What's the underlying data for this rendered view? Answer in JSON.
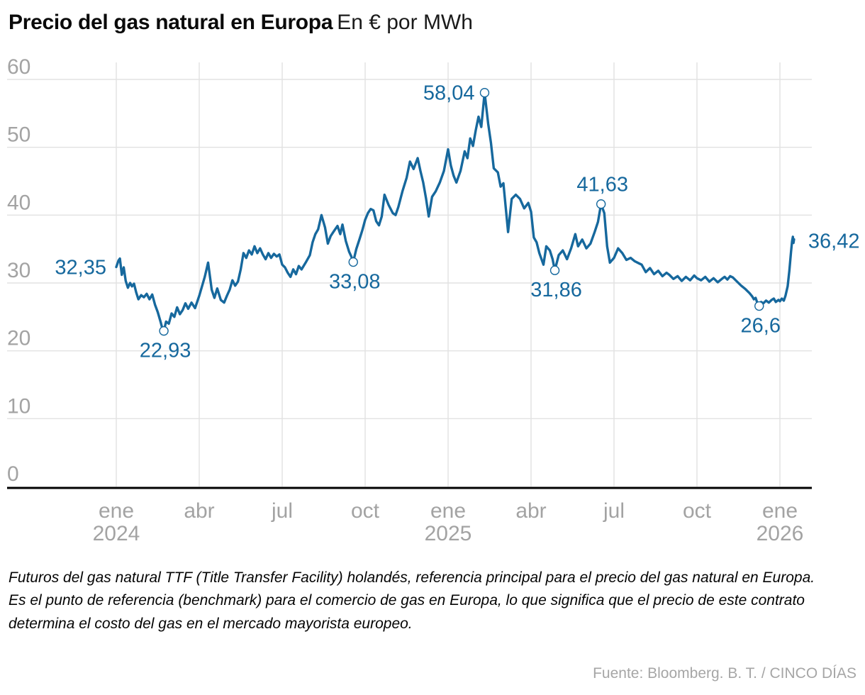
{
  "title": {
    "main": "Precio del gas natural en Europa",
    "subtitle": "En € por MWh"
  },
  "colors": {
    "line": "#16689d",
    "annotation_text": "#16689d",
    "marker_fill": "#ffffff",
    "gridline": "#e2e2e2",
    "axis_line": "#000000",
    "axis_tick_label": "#a3a3a3",
    "title_text": "#0a0a0a",
    "footnote_text": "#050505",
    "source_text": "#a6a6a6"
  },
  "chart_data": {
    "type": "line",
    "title": "Precio del gas natural en Europa",
    "subtitle": "En € por MWh",
    "ylabel": "",
    "unit": "€ por MWh",
    "ylim": [
      0,
      60
    ],
    "y_ticks": [
      0,
      10,
      20,
      30,
      40,
      50,
      60
    ],
    "x_unit": "months since 2024-01-01",
    "x_ticks": [
      {
        "m": 0,
        "label": "ene",
        "year": "2024"
      },
      {
        "m": 3,
        "label": "abr",
        "year": ""
      },
      {
        "m": 6,
        "label": "jul",
        "year": ""
      },
      {
        "m": 9,
        "label": "oct",
        "year": ""
      },
      {
        "m": 12,
        "label": "ene",
        "year": "2025"
      },
      {
        "m": 15,
        "label": "abr",
        "year": ""
      },
      {
        "m": 18,
        "label": "jul",
        "year": ""
      },
      {
        "m": 21,
        "label": "oct",
        "year": ""
      },
      {
        "m": 24,
        "label": "ene",
        "year": "2026"
      }
    ],
    "gridlines": true,
    "legend_position": "none",
    "series": [
      {
        "name": "Futuros gas natural TTF (€/MWh)",
        "points": [
          [
            0,
            32.35
          ],
          [
            0.08,
            33.3
          ],
          [
            0.13,
            33.6
          ],
          [
            0.2,
            31.2
          ],
          [
            0.27,
            32.3
          ],
          [
            0.34,
            30.3
          ],
          [
            0.42,
            29.3
          ],
          [
            0.5,
            30.0
          ],
          [
            0.57,
            29.5
          ],
          [
            0.64,
            29.9
          ],
          [
            0.72,
            28.6
          ],
          [
            0.8,
            27.6
          ],
          [
            0.9,
            28.2
          ],
          [
            1.0,
            27.9
          ],
          [
            1.1,
            28.4
          ],
          [
            1.2,
            27.6
          ],
          [
            1.3,
            28.3
          ],
          [
            1.4,
            26.8
          ],
          [
            1.5,
            25.7
          ],
          [
            1.6,
            24.3
          ],
          [
            1.66,
            23.4
          ],
          [
            1.72,
            22.93
          ],
          [
            1.8,
            24.3
          ],
          [
            1.9,
            24.0
          ],
          [
            2.0,
            25.5
          ],
          [
            2.1,
            25.0
          ],
          [
            2.2,
            26.4
          ],
          [
            2.3,
            25.4
          ],
          [
            2.4,
            26.0
          ],
          [
            2.5,
            27.0
          ],
          [
            2.6,
            26.2
          ],
          [
            2.72,
            27.1
          ],
          [
            2.85,
            26.3
          ],
          [
            3.0,
            28.1
          ],
          [
            3.1,
            29.5
          ],
          [
            3.2,
            30.9
          ],
          [
            3.32,
            33.0
          ],
          [
            3.45,
            29.0
          ],
          [
            3.55,
            27.8
          ],
          [
            3.65,
            29.2
          ],
          [
            3.78,
            27.5
          ],
          [
            3.9,
            27.1
          ],
          [
            4.0,
            28.1
          ],
          [
            4.1,
            29.0
          ],
          [
            4.2,
            30.4
          ],
          [
            4.3,
            29.6
          ],
          [
            4.4,
            30.2
          ],
          [
            4.5,
            32.0
          ],
          [
            4.6,
            34.4
          ],
          [
            4.7,
            33.7
          ],
          [
            4.8,
            34.8
          ],
          [
            4.9,
            34.2
          ],
          [
            5.0,
            35.4
          ],
          [
            5.1,
            34.4
          ],
          [
            5.2,
            35.1
          ],
          [
            5.3,
            34.2
          ],
          [
            5.4,
            33.5
          ],
          [
            5.5,
            34.4
          ],
          [
            5.6,
            33.7
          ],
          [
            5.7,
            34.3
          ],
          [
            5.8,
            33.9
          ],
          [
            5.9,
            34.2
          ],
          [
            6.0,
            32.7
          ],
          [
            6.1,
            32.3
          ],
          [
            6.2,
            31.5
          ],
          [
            6.3,
            30.9
          ],
          [
            6.4,
            32.0
          ],
          [
            6.5,
            31.3
          ],
          [
            6.6,
            32.5
          ],
          [
            6.7,
            32.0
          ],
          [
            6.85,
            33.0
          ],
          [
            7.0,
            34.1
          ],
          [
            7.1,
            36.0
          ],
          [
            7.2,
            37.2
          ],
          [
            7.3,
            37.9
          ],
          [
            7.42,
            40.0
          ],
          [
            7.55,
            38.2
          ],
          [
            7.65,
            35.8
          ],
          [
            7.75,
            36.9
          ],
          [
            7.85,
            37.5
          ],
          [
            8.0,
            38.4
          ],
          [
            8.1,
            37.2
          ],
          [
            8.18,
            38.6
          ],
          [
            8.3,
            36.2
          ],
          [
            8.42,
            34.6
          ],
          [
            8.5,
            33.9
          ],
          [
            8.57,
            33.08
          ],
          [
            8.68,
            35.0
          ],
          [
            8.8,
            36.5
          ],
          [
            8.9,
            37.8
          ],
          [
            9.0,
            39.3
          ],
          [
            9.1,
            40.3
          ],
          [
            9.2,
            40.9
          ],
          [
            9.3,
            40.7
          ],
          [
            9.4,
            39.1
          ],
          [
            9.5,
            38.5
          ],
          [
            9.6,
            39.8
          ],
          [
            9.7,
            43.0
          ],
          [
            9.85,
            41.5
          ],
          [
            10.0,
            40.3
          ],
          [
            10.1,
            40.0
          ],
          [
            10.2,
            41.2
          ],
          [
            10.35,
            43.5
          ],
          [
            10.5,
            45.5
          ],
          [
            10.62,
            47.9
          ],
          [
            10.75,
            46.8
          ],
          [
            10.9,
            48.4
          ],
          [
            11.0,
            46.5
          ],
          [
            11.1,
            44.8
          ],
          [
            11.2,
            42.5
          ],
          [
            11.3,
            39.8
          ],
          [
            11.42,
            42.7
          ],
          [
            11.55,
            43.5
          ],
          [
            11.7,
            44.8
          ],
          [
            11.85,
            46.5
          ],
          [
            12.0,
            49.7
          ],
          [
            12.1,
            47.3
          ],
          [
            12.2,
            45.8
          ],
          [
            12.3,
            44.8
          ],
          [
            12.45,
            46.5
          ],
          [
            12.6,
            49.4
          ],
          [
            12.7,
            48.4
          ],
          [
            12.8,
            51.3
          ],
          [
            12.9,
            50.2
          ],
          [
            13.0,
            52.5
          ],
          [
            13.1,
            54.5
          ],
          [
            13.2,
            53.0
          ],
          [
            13.32,
            58.04
          ],
          [
            13.45,
            53.5
          ],
          [
            13.55,
            50.6
          ],
          [
            13.65,
            46.9
          ],
          [
            13.8,
            46.3
          ],
          [
            13.9,
            44.2
          ],
          [
            14.0,
            44.7
          ],
          [
            14.17,
            37.5
          ],
          [
            14.3,
            42.4
          ],
          [
            14.45,
            43.0
          ],
          [
            14.6,
            42.4
          ],
          [
            14.75,
            41.0
          ],
          [
            14.9,
            41.8
          ],
          [
            15.0,
            40.5
          ],
          [
            15.1,
            36.7
          ],
          [
            15.2,
            36.0
          ],
          [
            15.3,
            34.4
          ],
          [
            15.45,
            32.7
          ],
          [
            15.55,
            35.4
          ],
          [
            15.68,
            34.8
          ],
          [
            15.78,
            33.5
          ],
          [
            15.86,
            31.86
          ],
          [
            16.0,
            34.1
          ],
          [
            16.15,
            34.8
          ],
          [
            16.3,
            33.5
          ],
          [
            16.45,
            35.1
          ],
          [
            16.6,
            37.2
          ],
          [
            16.7,
            35.4
          ],
          [
            16.85,
            36.4
          ],
          [
            17.0,
            35.1
          ],
          [
            17.15,
            35.8
          ],
          [
            17.3,
            37.5
          ],
          [
            17.42,
            39.0
          ],
          [
            17.53,
            41.63
          ],
          [
            17.65,
            40.3
          ],
          [
            17.75,
            35.4
          ],
          [
            17.85,
            33.0
          ],
          [
            18.0,
            33.7
          ],
          [
            18.15,
            35.1
          ],
          [
            18.3,
            34.4
          ],
          [
            18.45,
            33.4
          ],
          [
            18.6,
            33.7
          ],
          [
            18.75,
            33.2
          ],
          [
            18.9,
            32.9
          ],
          [
            19.0,
            32.7
          ],
          [
            19.15,
            31.6
          ],
          [
            19.3,
            32.2
          ],
          [
            19.45,
            31.3
          ],
          [
            19.6,
            31.8
          ],
          [
            19.75,
            31.0
          ],
          [
            19.9,
            31.5
          ],
          [
            20.0,
            31.2
          ],
          [
            20.15,
            30.6
          ],
          [
            20.3,
            31.0
          ],
          [
            20.45,
            30.3
          ],
          [
            20.6,
            30.9
          ],
          [
            20.75,
            30.4
          ],
          [
            20.9,
            31.1
          ],
          [
            21.0,
            30.7
          ],
          [
            21.15,
            30.4
          ],
          [
            21.3,
            30.9
          ],
          [
            21.45,
            30.2
          ],
          [
            21.6,
            30.7
          ],
          [
            21.75,
            30.1
          ],
          [
            21.9,
            30.6
          ],
          [
            22.0,
            30.9
          ],
          [
            22.1,
            30.5
          ],
          [
            22.2,
            31.0
          ],
          [
            22.3,
            30.8
          ],
          [
            22.45,
            30.2
          ],
          [
            22.6,
            29.6
          ],
          [
            22.75,
            29.1
          ],
          [
            22.9,
            28.5
          ],
          [
            23.0,
            28.0
          ],
          [
            23.06,
            27.6
          ],
          [
            23.12,
            27.8
          ],
          [
            23.18,
            27.1
          ],
          [
            23.25,
            26.6
          ],
          [
            23.32,
            27.2
          ],
          [
            23.4,
            27.0
          ],
          [
            23.5,
            27.4
          ],
          [
            23.6,
            27.1
          ],
          [
            23.7,
            27.5
          ],
          [
            23.78,
            27.7
          ],
          [
            23.85,
            27.2
          ],
          [
            23.95,
            27.5
          ],
          [
            24.0,
            27.3
          ],
          [
            24.07,
            27.7
          ],
          [
            24.14,
            27.4
          ],
          [
            24.2,
            28.1
          ],
          [
            24.28,
            29.5
          ],
          [
            24.34,
            31.8
          ],
          [
            24.4,
            34.5
          ],
          [
            24.44,
            36.2
          ],
          [
            24.47,
            36.8
          ],
          [
            24.49,
            35.9
          ],
          [
            24.51,
            36.42
          ]
        ]
      }
    ],
    "annotations": [
      {
        "label": "32,35",
        "m": 0,
        "value": 32.35,
        "marker": false,
        "anchor": "left"
      },
      {
        "label": "22,93",
        "m": 1.72,
        "value": 22.93,
        "marker": true,
        "anchor": "below"
      },
      {
        "label": "33,08",
        "m": 8.57,
        "value": 33.08,
        "marker": true,
        "anchor": "below"
      },
      {
        "label": "58,04",
        "m": 13.32,
        "value": 58.04,
        "marker": true,
        "anchor": "left"
      },
      {
        "label": "31,86",
        "m": 15.86,
        "value": 31.86,
        "marker": true,
        "anchor": "below"
      },
      {
        "label": "41,63",
        "m": 17.53,
        "value": 41.63,
        "marker": true,
        "anchor": "above"
      },
      {
        "label": "26,6",
        "m": 23.25,
        "value": 26.6,
        "marker": true,
        "anchor": "below"
      },
      {
        "label": "36,42",
        "m": 24.51,
        "value": 36.42,
        "marker": false,
        "anchor": "right"
      }
    ]
  },
  "footnotes": {
    "p1": "Futuros del gas natural TTF (Title Transfer Facility) holandés, referencia principal para el precio del gas natural en Europa.",
    "p2": "Es el punto de referencia (benchmark) para el comercio de gas en Europa, lo que significa que el precio de este contrato determina el costo del gas en el mercado mayorista europeo."
  },
  "source": "Fuente: Bloomberg. B. T. / CINCO DÍAS"
}
